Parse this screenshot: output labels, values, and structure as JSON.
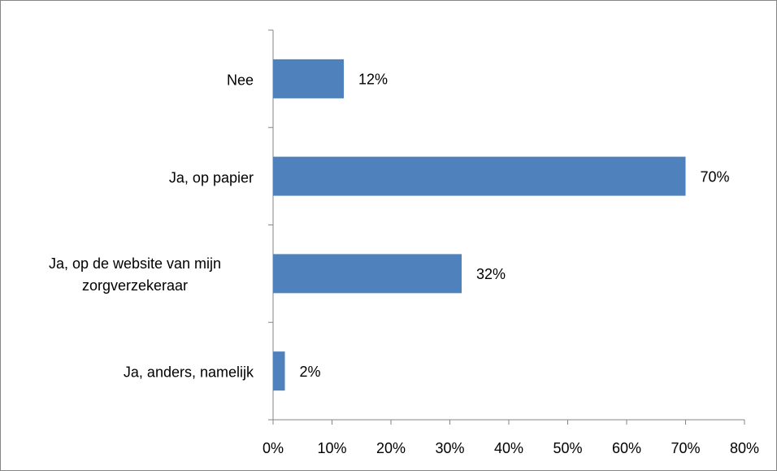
{
  "chart_data": {
    "type": "bar",
    "orientation": "horizontal",
    "categories": [
      "Nee",
      "Ja, op papier",
      "Ja, op de website van mijn zorgverzekeraar",
      "Ja, anders, namelijk"
    ],
    "values": [
      12,
      70,
      32,
      2
    ],
    "value_labels": [
      "12%",
      "70%",
      "32%",
      "2%"
    ],
    "color": "#4f81bd",
    "xlim": [
      0,
      80
    ],
    "xticks": [
      {
        "value": 0,
        "label": "0%"
      },
      {
        "value": 10,
        "label": "10%"
      },
      {
        "value": 20,
        "label": "20%"
      },
      {
        "value": 30,
        "label": "30%"
      },
      {
        "value": 40,
        "label": "40%"
      },
      {
        "value": 50,
        "label": "50%"
      },
      {
        "value": 60,
        "label": "60%"
      },
      {
        "value": 70,
        "label": "70%"
      },
      {
        "value": 80,
        "label": "80%"
      }
    ],
    "grid": false
  }
}
